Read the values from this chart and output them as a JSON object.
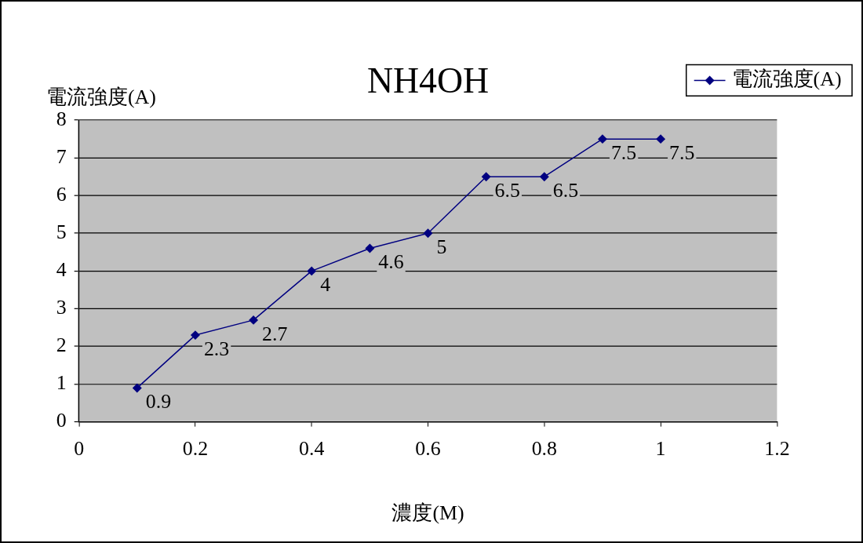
{
  "chart_data": {
    "type": "line",
    "title": "NH4OH",
    "xlabel": "濃度(M)",
    "ylabel": "電流強度(A)",
    "x": [
      0.1,
      0.2,
      0.3,
      0.4,
      0.5,
      0.6,
      0.7,
      0.8,
      0.9,
      1.0
    ],
    "series": [
      {
        "name": "電流強度(A)",
        "color": "#000080",
        "values": [
          0.9,
          2.3,
          2.7,
          4,
          4.6,
          5,
          6.5,
          6.5,
          7.5,
          7.5
        ]
      }
    ],
    "xlim": [
      0,
      1.2
    ],
    "xticks": [
      0,
      0.2,
      0.4,
      0.6,
      0.8,
      1,
      1.2
    ],
    "ylim": [
      0,
      8
    ],
    "yticks": [
      0,
      1,
      2,
      3,
      4,
      5,
      6,
      7,
      8
    ],
    "grid": "y",
    "legend": "top right",
    "marker": "diamond",
    "line_style": "solid",
    "data_labels": true
  }
}
